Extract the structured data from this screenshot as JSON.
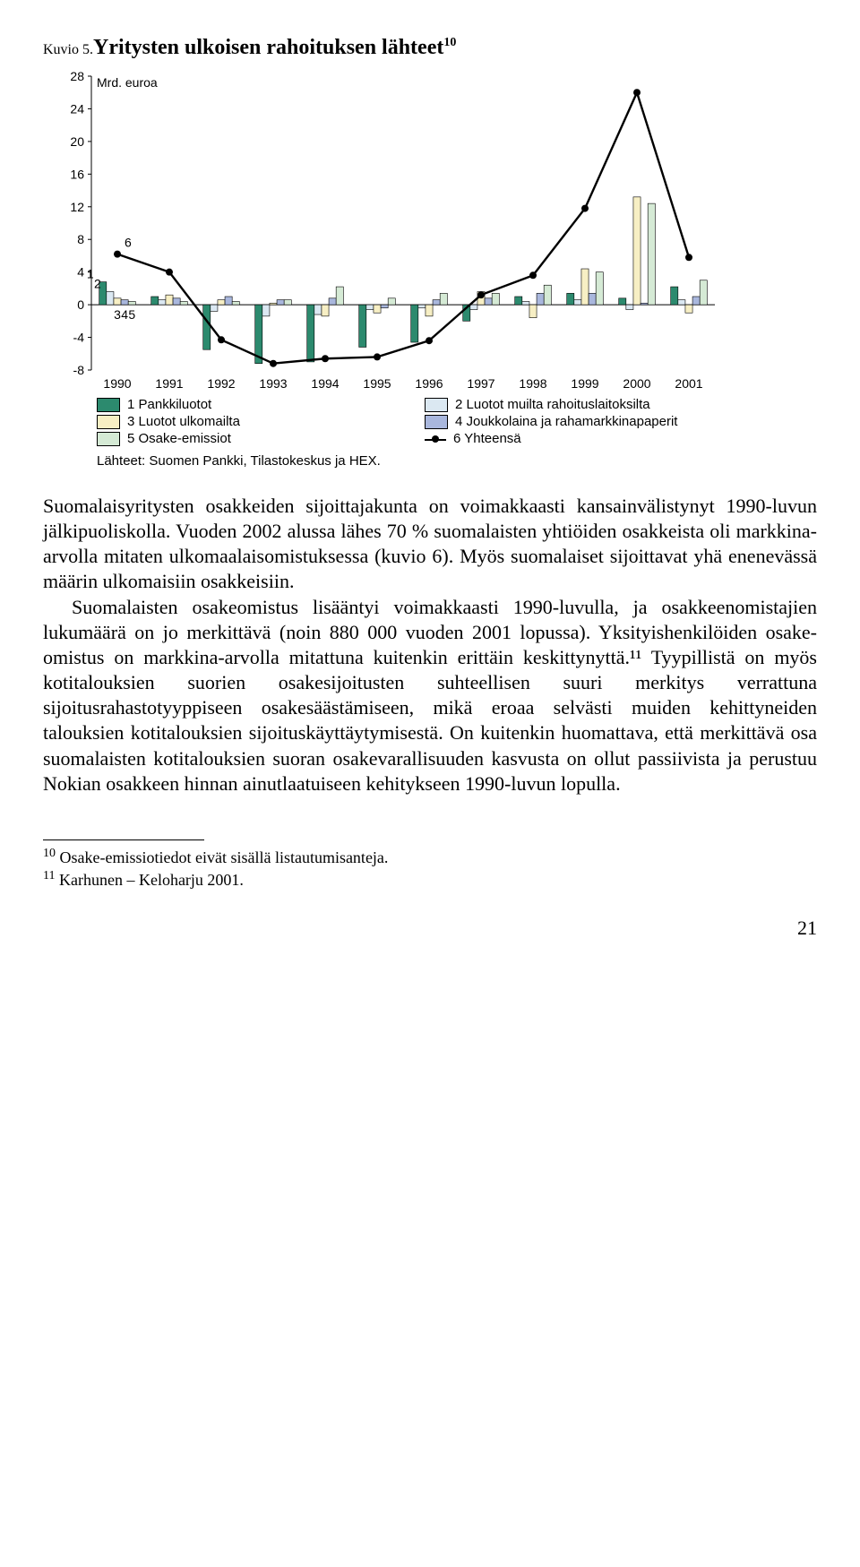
{
  "figure": {
    "label": "Kuvio 5.",
    "title": "Yritysten ulkoisen rahoituksen lähteet",
    "title_sup": "10",
    "y_axis_label": "Mrd. euroa",
    "chart": {
      "type": "bar+line",
      "categories": [
        "1990",
        "1991",
        "1992",
        "1993",
        "1994",
        "1995",
        "1996",
        "1997",
        "1998",
        "1999",
        "2000",
        "2001"
      ],
      "series": [
        {
          "name": "1 Pankkiluotot",
          "color": "#2c8a6e",
          "values": [
            2.8,
            1.0,
            -5.5,
            -7.2,
            -7.0,
            -5.2,
            -4.6,
            -2.0,
            1.0,
            1.4,
            0.8,
            2.2
          ]
        },
        {
          "name": "2 Luotot muilta rahoituslaitoksilta",
          "color": "#dbe8f2",
          "values": [
            1.6,
            0.6,
            -0.8,
            -1.4,
            -1.2,
            -0.6,
            -0.4,
            -0.6,
            0.4,
            0.6,
            -0.6,
            0.6
          ]
        },
        {
          "name": "3 Luotot ulkomailta",
          "color": "#f7efc4",
          "values": [
            0.8,
            1.2,
            0.6,
            0.2,
            -1.4,
            -1.0,
            -1.4,
            1.6,
            -1.6,
            4.4,
            13.2,
            -1.0
          ]
        },
        {
          "name": "4 Joukkolaina ja rahamarkkinapaperit",
          "color": "#a9b7dd",
          "values": [
            0.6,
            0.8,
            1.0,
            0.6,
            0.8,
            -0.4,
            0.6,
            0.8,
            1.4,
            1.4,
            0.2,
            1.0
          ]
        },
        {
          "name": "5 Osake-emissiot",
          "color": "#d5ead5",
          "values": [
            0.4,
            0.4,
            0.4,
            0.6,
            2.2,
            0.8,
            1.4,
            1.4,
            2.4,
            4.0,
            12.4,
            3.0
          ]
        }
      ],
      "line_series": {
        "name": "6 Yhteensä",
        "color": "#000000",
        "values": [
          6.2,
          4.0,
          -4.3,
          -7.2,
          -6.6,
          -6.4,
          -4.4,
          1.2,
          3.6,
          11.8,
          26.0,
          5.8
        ]
      },
      "ylim": [
        -8,
        28
      ],
      "ytick_step": 4,
      "background_color": "#ffffff",
      "grid_color": "#000000",
      "bar_width": 0.14,
      "axis_fontsize": 14,
      "axis_font": "Arial"
    },
    "legend_items": [
      {
        "num": "1",
        "label": "Pankkiluotot",
        "color": "#2c8a6e"
      },
      {
        "num": "2",
        "label": "Luotot muilta rahoituslaitoksilta",
        "color": "#dbe8f2"
      },
      {
        "num": "3",
        "label": "Luotot ulkomailta",
        "color": "#f7efc4"
      },
      {
        "num": "4",
        "label": "Joukkolaina ja rahamarkkinapaperit",
        "color": "#a9b7dd"
      },
      {
        "num": "5",
        "label": "Osake-emissiot",
        "color": "#d5ead5"
      },
      {
        "num": "6",
        "label": "Yhteensä",
        "is_line": true
      }
    ],
    "source": "Lähteet: Suomen Pankki, Tilastokeskus ja HEX."
  },
  "paragraphs": [
    "Suomalaisyritysten osakkeiden sijoittajakunta on voimakkaasti kansainvälistynyt 1990-luvun jälkipuoliskolla. Vuoden 2002 alussa lähes 70 % suomalaisten yhtiöiden osakkeista oli markkina-arvolla mitaten ulkomaalaisomistuksessa (kuvio 6). Myös suomalaiset sijoittavat yhä enenevässä määrin ulkomaisiin osakkeisiin.",
    "Suomalaisten osakeomistus lisääntyi voimakkaasti 1990-luvulla, ja osakkeenomistajien lukumäärä on jo merkittävä (noin 880 000 vuoden 2001 lopussa). Yksityishenkilöiden osake-omistus on markkina-arvolla mitattuna kuitenkin erittäin keskittynyttä.¹¹ Tyypillistä on myös kotitalouksien suorien osakesijoitusten suhteellisen suuri merkitys verrattuna sijoitusrahastotyyppiseen osakesäästämiseen, mikä eroaa selvästi muiden kehittyneiden talouksien kotitalouksien sijoituskäyttäytymisestä. On kuitenkin huomattava, että merkittävä osa suomalaisten kotitalouksien suoran osakevarallisuuden kasvusta on ollut passiivista ja perustuu Nokian osakkeen hinnan ainutlaatuiseen kehitykseen 1990-luvun lopulla."
  ],
  "footnotes": [
    {
      "num": "10",
      "text": "Osake-emissiotiedot eivät sisällä listautumisanteja."
    },
    {
      "num": "11",
      "text": "Karhunen – Keloharju 2001."
    }
  ],
  "page_number": "21",
  "series_labels_on_chart": [
    "1",
    "2",
    "3",
    "4",
    "5",
    "6"
  ]
}
